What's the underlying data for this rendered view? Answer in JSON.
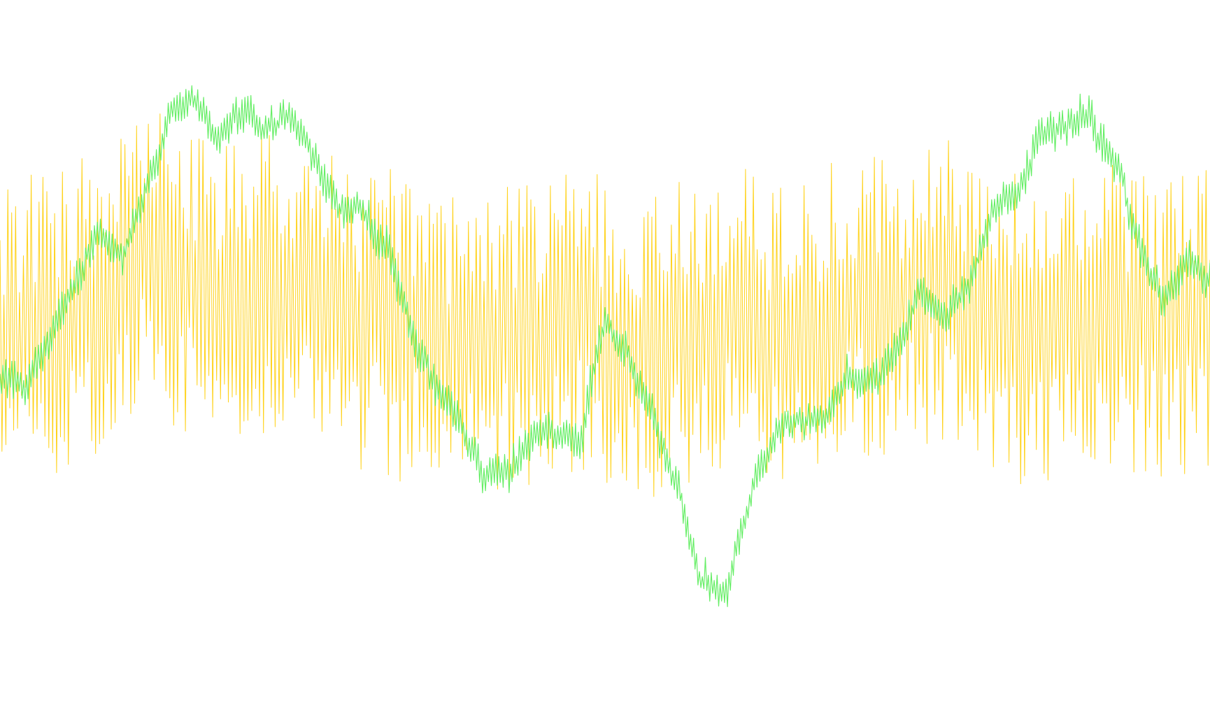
{
  "chart_data": {
    "type": "line",
    "title": "",
    "xlabel": "",
    "ylabel": "",
    "grid": false,
    "legend": "none",
    "x_range": [
      0,
      100
    ],
    "ylim": [
      0,
      100
    ],
    "series": [
      {
        "color": "#66ee66",
        "style": "oscillating-band",
        "band_amplitude": 3,
        "x": [
          0,
          2,
          4,
          6,
          8,
          10,
          12,
          14,
          16,
          18,
          20,
          22,
          24,
          26,
          28,
          30,
          32,
          34,
          36,
          38,
          40,
          42,
          44,
          46,
          48,
          50,
          52,
          54,
          56,
          58,
          60,
          62,
          64,
          66,
          68,
          70,
          72,
          74,
          76,
          78,
          80,
          82,
          84,
          86,
          88,
          90,
          92,
          94,
          96,
          98,
          100
        ],
        "values": [
          42,
          40,
          47,
          56,
          65,
          62,
          73,
          84,
          88,
          82,
          86,
          82,
          85,
          77,
          70,
          68,
          64,
          48,
          40,
          34,
          26,
          25,
          33,
          32,
          31,
          52,
          45,
          35,
          22,
          8,
          6,
          22,
          32,
          35,
          34,
          42,
          40,
          46,
          56,
          51,
          57,
          70,
          73,
          83,
          83,
          86,
          78,
          65,
          55,
          60,
          58
        ]
      },
      {
        "color": "#ffd21a",
        "style": "noise",
        "amplitude": 26,
        "x": [
          0,
          3,
          6,
          9,
          12,
          15,
          18,
          21,
          24,
          27,
          30,
          33,
          36,
          39,
          42,
          45,
          48,
          51,
          54,
          57,
          60,
          63,
          66,
          69,
          72,
          75,
          78,
          81,
          84,
          87,
          90,
          93,
          96,
          100
        ],
        "values": [
          48,
          50,
          52,
          55,
          62,
          58,
          54,
          56,
          58,
          54,
          52,
          50,
          48,
          46,
          48,
          50,
          52,
          48,
          46,
          50,
          52,
          50,
          48,
          52,
          54,
          55,
          56,
          52,
          50,
          48,
          50,
          52,
          50,
          52
        ]
      }
    ]
  }
}
